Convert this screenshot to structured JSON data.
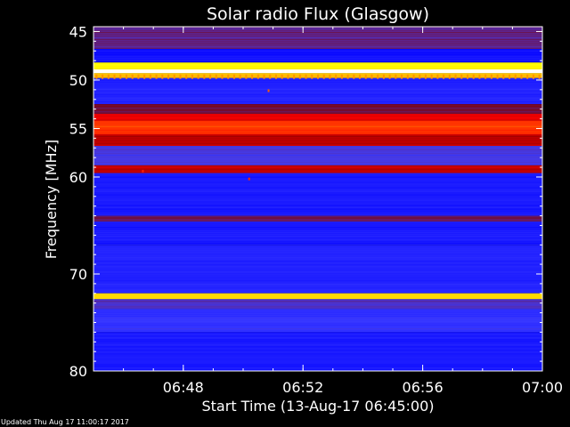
{
  "chart_data": {
    "type": "heatmap",
    "title": "Solar radio Flux (Glasgow)",
    "xlabel": "Start Time (13-Aug-17 06:45:00)",
    "ylabel": "Frequency [MHz]",
    "x_range_minutes": [
      0,
      15
    ],
    "x_ticks": [
      {
        "label": "06:48",
        "minutes": 3
      },
      {
        "label": "06:52",
        "minutes": 7
      },
      {
        "label": "06:56",
        "minutes": 11
      },
      {
        "label": "07:00",
        "minutes": 15
      }
    ],
    "y_range_mhz": [
      44.5,
      80
    ],
    "y_ticks": [
      {
        "label": "45",
        "mhz": 45
      },
      {
        "label": "50",
        "mhz": 50
      },
      {
        "label": "55",
        "mhz": 55
      },
      {
        "label": "60",
        "mhz": 60
      },
      {
        "label": "70",
        "mhz": 70
      },
      {
        "label": "80",
        "mhz": 80
      }
    ],
    "colorscale": [
      "#000080",
      "#0000ff",
      "#4040ff",
      "#800000",
      "#ff0000",
      "#ffa500",
      "#ffff00",
      "#ffffff"
    ],
    "bands": [
      {
        "mhz_from": 44.5,
        "mhz_to": 46.8,
        "intensity": 0.35
      },
      {
        "mhz_from": 46.8,
        "mhz_to": 48.2,
        "intensity": 0.18
      },
      {
        "mhz_from": 48.2,
        "mhz_to": 48.9,
        "intensity": 0.85
      },
      {
        "mhz_from": 48.9,
        "mhz_to": 49.3,
        "intensity": 1.0
      },
      {
        "mhz_from": 49.3,
        "mhz_to": 49.8,
        "intensity": 0.75
      },
      {
        "mhz_from": 49.8,
        "mhz_to": 52.5,
        "intensity": 0.22
      },
      {
        "mhz_from": 52.5,
        "mhz_to": 53.5,
        "intensity": 0.4
      },
      {
        "mhz_from": 53.5,
        "mhz_to": 54.2,
        "intensity": 0.55
      },
      {
        "mhz_from": 54.2,
        "mhz_to": 55.6,
        "intensity": 0.62
      },
      {
        "mhz_from": 55.6,
        "mhz_to": 56.8,
        "intensity": 0.5
      },
      {
        "mhz_from": 56.8,
        "mhz_to": 58.8,
        "intensity": 0.3
      },
      {
        "mhz_from": 58.8,
        "mhz_to": 59.6,
        "intensity": 0.5
      },
      {
        "mhz_from": 59.6,
        "mhz_to": 64.0,
        "intensity": 0.2
      },
      {
        "mhz_from": 64.0,
        "mhz_to": 64.6,
        "intensity": 0.38
      },
      {
        "mhz_from": 64.6,
        "mhz_to": 67.0,
        "intensity": 0.2
      },
      {
        "mhz_from": 67.0,
        "mhz_to": 72.0,
        "intensity": 0.22
      },
      {
        "mhz_from": 72.0,
        "mhz_to": 72.6,
        "intensity": 0.8
      },
      {
        "mhz_from": 72.6,
        "mhz_to": 73.6,
        "intensity": 0.32
      },
      {
        "mhz_from": 73.6,
        "mhz_to": 76.0,
        "intensity": 0.26
      },
      {
        "mhz_from": 76.0,
        "mhz_to": 80.0,
        "intensity": 0.2
      }
    ],
    "comb_line": {
      "mhz": 49.7,
      "intensity": 0.7,
      "spacing_minutes": 0.2
    },
    "spots": [
      {
        "minutes": 5.85,
        "mhz": 51.1,
        "intensity": 0.65
      },
      {
        "minutes": 1.65,
        "mhz": 59.4,
        "intensity": 0.6
      },
      {
        "minutes": 5.2,
        "mhz": 60.2,
        "intensity": 0.6
      }
    ],
    "grid": false,
    "legend": "none"
  },
  "footer": {
    "updated": "Updated Thu Aug 17 11:00:17 2017"
  }
}
